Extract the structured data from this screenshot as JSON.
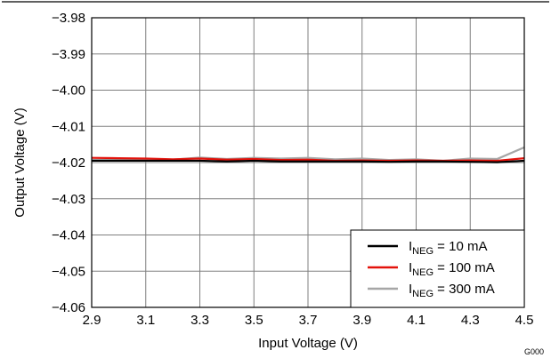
{
  "chart_data": {
    "type": "line",
    "xlabel": "Input Voltage (V)",
    "ylabel": "Output Voltage (V)",
    "xlim": [
      2.9,
      4.5
    ],
    "ylim": [
      -4.06,
      -3.98
    ],
    "x_ticks": [
      2.9,
      3.1,
      3.3,
      3.5,
      3.7,
      3.9,
      4.1,
      4.3,
      4.5
    ],
    "x_tick_labels": [
      "2.9",
      "3.1",
      "3.3",
      "3.5",
      "3.7",
      "3.9",
      "4.1",
      "4.3",
      "4.5"
    ],
    "y_ticks": [
      -3.98,
      -3.99,
      -4.0,
      -4.01,
      -4.02,
      -4.03,
      -4.04,
      -4.05,
      -4.06
    ],
    "y_tick_labels": [
      "−3.98",
      "−3.99",
      "−4.00",
      "−4.01",
      "−4.02",
      "−4.03",
      "−4.04",
      "−4.05",
      "−4.06"
    ],
    "grid": true,
    "legend_position": "bottom-right",
    "figure_id": "G000",
    "x": [
      2.9,
      3.0,
      3.1,
      3.2,
      3.3,
      3.4,
      3.5,
      3.6,
      3.7,
      3.8,
      3.9,
      4.0,
      4.1,
      4.2,
      4.3,
      4.4,
      4.5
    ],
    "series": [
      {
        "name": "INEG = 10 mA",
        "legend_main": "I",
        "legend_sub": "NEG",
        "legend_rest": " = 10 mA",
        "color": "#000000",
        "values": [
          -4.0195,
          -4.0195,
          -4.0195,
          -4.0195,
          -4.0195,
          -4.0197,
          -4.0195,
          -4.0197,
          -4.0197,
          -4.0197,
          -4.0197,
          -4.0198,
          -4.0197,
          -4.0197,
          -4.0198,
          -4.0199,
          -4.0195
        ]
      },
      {
        "name": "INEG = 100 mA",
        "legend_main": "I",
        "legend_sub": "NEG",
        "legend_rest": " = 100 mA",
        "color": "#e3120b",
        "values": [
          -4.0187,
          -4.0188,
          -4.0189,
          -4.0191,
          -4.0189,
          -4.0192,
          -4.019,
          -4.0193,
          -4.0192,
          -4.0195,
          -4.0194,
          -4.0195,
          -4.0194,
          -4.0195,
          -4.0194,
          -4.0195,
          -4.0188
        ]
      },
      {
        "name": "INEG = 300 mA",
        "legend_main": "I",
        "legend_sub": "NEG",
        "legend_rest": " = 300 mA",
        "color": "#a6a6a6",
        "values": [
          -4.0193,
          -4.0192,
          -4.0192,
          -4.0192,
          -4.0186,
          -4.019,
          -4.0187,
          -4.0189,
          -4.0187,
          -4.0191,
          -4.0189,
          -4.0193,
          -4.0191,
          -4.0195,
          -4.0189,
          -4.019,
          -4.0158
        ]
      }
    ]
  }
}
